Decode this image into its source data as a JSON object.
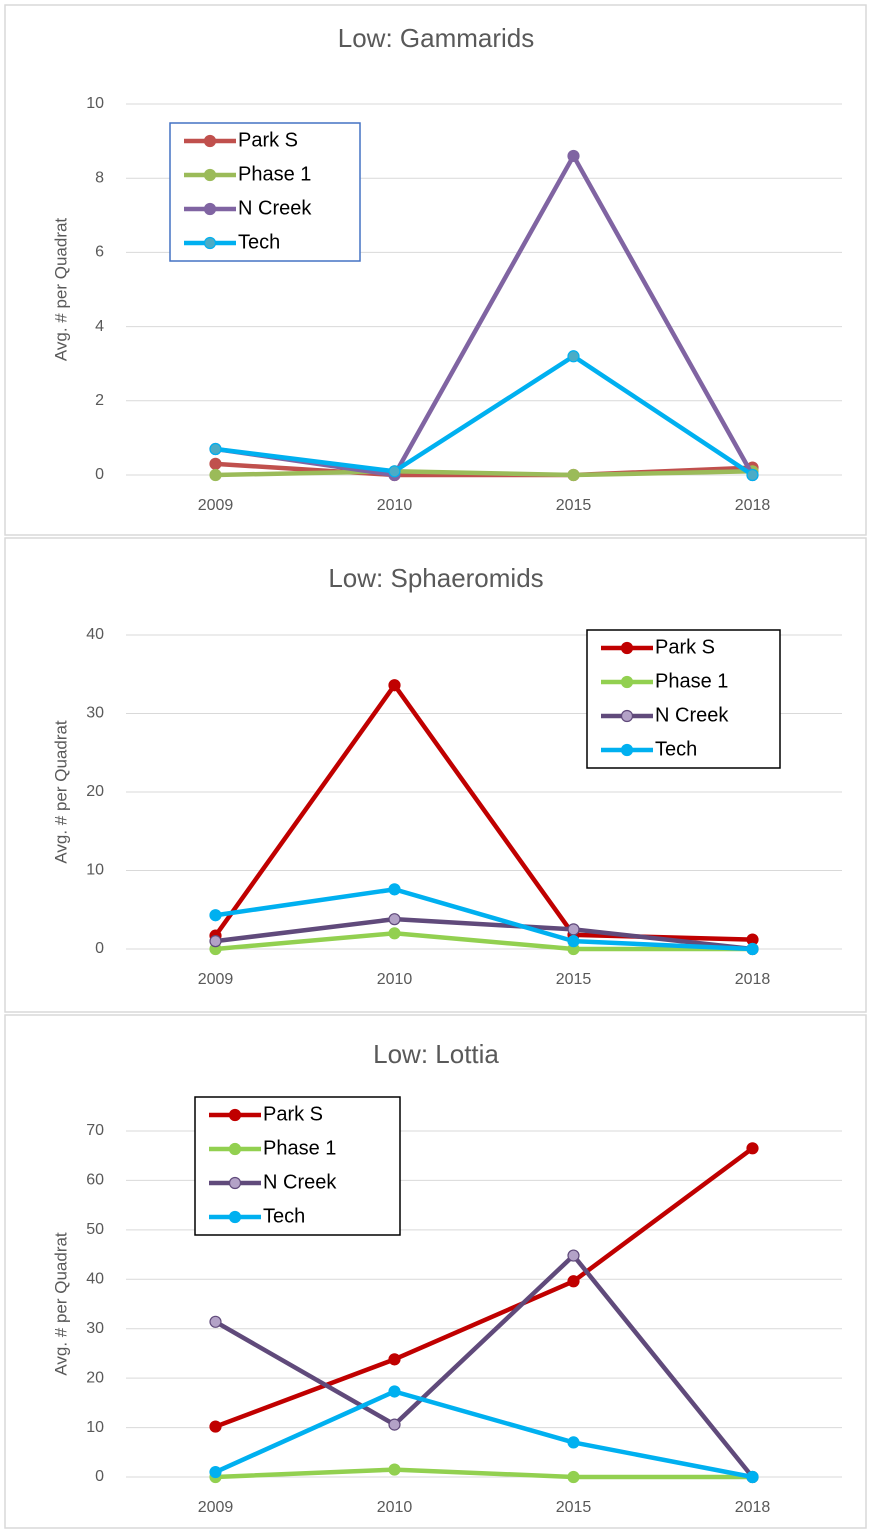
{
  "chart_data": [
    {
      "type": "line",
      "title": "Low: Gammarids",
      "y_label": "Avg. # per Quadrat",
      "categories": [
        "2009",
        "2010",
        "2015",
        "2018"
      ],
      "ylim": [
        0,
        10
      ],
      "yticks": [
        0,
        2,
        4,
        6,
        8,
        10
      ],
      "grid": true,
      "legend": "upper left",
      "legend_border": "#4472c4",
      "series": [
        {
          "name": "Park S",
          "color": "#c0504d",
          "values": [
            0.3,
            0,
            0,
            0.2
          ]
        },
        {
          "name": "Phase 1",
          "color": "#9bbb59",
          "values": [
            0,
            0.1,
            0,
            0.1
          ]
        },
        {
          "name": "N Creek",
          "color": "#8064a2",
          "values": [
            0.7,
            0,
            8.6,
            0
          ]
        },
        {
          "name": "Tech",
          "color": "#00b0f0",
          "marker_color": "#4bacc6",
          "values": [
            0.7,
            0.1,
            3.2,
            0
          ]
        }
      ]
    },
    {
      "type": "line",
      "title": "Low: Sphaeromids",
      "y_label": "Avg. # per Quadrat",
      "categories": [
        "2009",
        "2010",
        "2015",
        "2018"
      ],
      "ylim": [
        0,
        40
      ],
      "yticks": [
        0,
        10,
        20,
        30,
        40
      ],
      "grid": true,
      "legend": "upper right",
      "legend_border": "#000000",
      "series": [
        {
          "name": "Park S",
          "color": "#c00000",
          "values": [
            1.7,
            33.6,
            1.8,
            1.2
          ]
        },
        {
          "name": "Phase 1",
          "color": "#92d050",
          "values": [
            0,
            2,
            0,
            0
          ]
        },
        {
          "name": "N Creek",
          "color": "#604a7b",
          "marker_color": "#b3a2c7",
          "values": [
            1,
            3.8,
            2.5,
            0
          ]
        },
        {
          "name": "Tech",
          "color": "#00b0f0",
          "values": [
            4.3,
            7.6,
            1,
            0
          ]
        }
      ]
    },
    {
      "type": "line",
      "title": "Low: Lottia",
      "y_label": "Avg. # per Quadrat",
      "categories": [
        "2009",
        "2010",
        "2015",
        "2018"
      ],
      "ylim": [
        0,
        70
      ],
      "yticks": [
        0,
        10,
        20,
        30,
        40,
        50,
        60,
        70
      ],
      "grid": true,
      "legend": "upper left",
      "legend_border": "#000000",
      "series": [
        {
          "name": "Park S",
          "color": "#c00000",
          "values": [
            10.2,
            23.8,
            39.6,
            66.5
          ]
        },
        {
          "name": "Phase 1",
          "color": "#92d050",
          "values": [
            0,
            1.5,
            0,
            0
          ]
        },
        {
          "name": "N Creek",
          "color": "#604a7b",
          "marker_color": "#b3a2c7",
          "values": [
            31.4,
            10.6,
            44.8,
            0
          ]
        },
        {
          "name": "Tech",
          "color": "#00b0f0",
          "values": [
            1,
            17.3,
            7,
            0
          ]
        }
      ]
    }
  ]
}
